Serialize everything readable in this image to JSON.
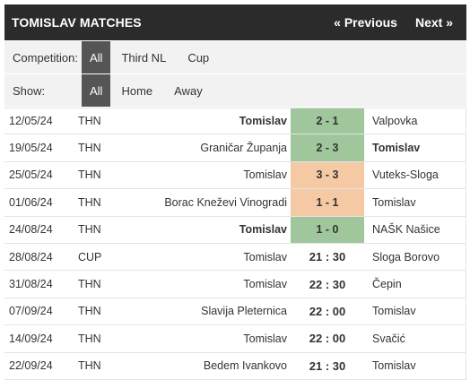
{
  "header": {
    "title": "TOMISLAV MATCHES",
    "prev": "« Previous",
    "next": "Next »"
  },
  "competition": {
    "label": "Competition:",
    "options": [
      "All",
      "Third NL",
      "Cup"
    ]
  },
  "show": {
    "label": "Show:",
    "options": [
      "All",
      "Home",
      "Away"
    ]
  },
  "colors": {
    "win": "#9fc79b",
    "draw": "#f6c9a5",
    "header": "#2b2b2b",
    "active": "#555555"
  },
  "matches": [
    {
      "date": "12/05/24",
      "comp": "THN",
      "home": "Tomislav",
      "score": "2 - 1",
      "away": "Valpovka",
      "result": "win",
      "bold": "home"
    },
    {
      "date": "19/05/24",
      "comp": "THN",
      "home": "Graničar Županja",
      "score": "2 - 3",
      "away": "Tomislav",
      "result": "win",
      "bold": "away"
    },
    {
      "date": "25/05/24",
      "comp": "THN",
      "home": "Tomislav",
      "score": "3 - 3",
      "away": "Vuteks-Sloga",
      "result": "draw",
      "bold": ""
    },
    {
      "date": "01/06/24",
      "comp": "THN",
      "home": "Borac Kneževi Vinogradi",
      "score": "1 - 1",
      "away": "Tomislav",
      "result": "draw",
      "bold": ""
    },
    {
      "date": "24/08/24",
      "comp": "THN",
      "home": "Tomislav",
      "score": "1 - 0",
      "away": "NAŠK Našice",
      "result": "win",
      "bold": "home"
    },
    {
      "date": "28/08/24",
      "comp": "CUP",
      "home": "Tomislav",
      "score": "21 : 30",
      "away": "Sloga Borovo",
      "result": "future",
      "bold": ""
    },
    {
      "date": "31/08/24",
      "comp": "THN",
      "home": "Tomislav",
      "score": "22 : 30",
      "away": "Čepin",
      "result": "future",
      "bold": ""
    },
    {
      "date": "07/09/24",
      "comp": "THN",
      "home": "Slavija Pleternica",
      "score": "22 : 00",
      "away": "Tomislav",
      "result": "future",
      "bold": ""
    },
    {
      "date": "14/09/24",
      "comp": "THN",
      "home": "Tomislav",
      "score": "22 : 00",
      "away": "Svačić",
      "result": "future",
      "bold": ""
    },
    {
      "date": "22/09/24",
      "comp": "THN",
      "home": "Bedem Ivankovo",
      "score": "21 : 30",
      "away": "Tomislav",
      "result": "future",
      "bold": ""
    }
  ]
}
